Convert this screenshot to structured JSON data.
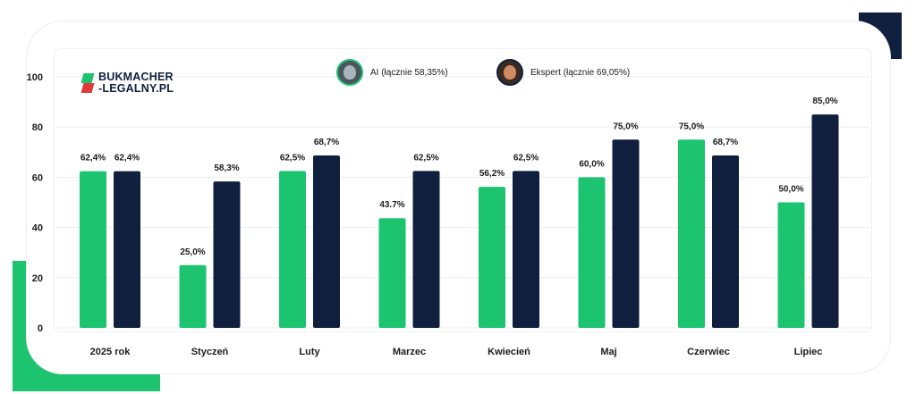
{
  "brand": {
    "logo_line1": "BUKMACHER",
    "logo_line2": "-LEGALNY.PL"
  },
  "legend": [
    {
      "name": "AI",
      "label": "AI (łącznie 58,35%)",
      "avatar": "robot-face-icon",
      "color": "#1cc46f"
    },
    {
      "name": "Ekspert",
      "label": "Ekspert (łącznie 69,05%)",
      "avatar": "expert-portrait-icon",
      "color": "#0f1f3d"
    }
  ],
  "colors": {
    "ai": "#1cc46f",
    "expert": "#0f1f3d",
    "grid": "#eceef1",
    "text": "#1b1b1b"
  },
  "chart_data": {
    "type": "bar",
    "categories": [
      "2025 rok",
      "Styczeń",
      "Luty",
      "Marzec",
      "Kwiecień",
      "Maj",
      "Czerwiec",
      "Lipiec"
    ],
    "series": [
      {
        "name": "AI",
        "values": [
          62.4,
          25.0,
          62.5,
          43.7,
          56.2,
          60.0,
          75.0,
          50.0
        ],
        "labels": [
          "62,4%",
          "25,0%",
          "62,5%",
          "43.7%",
          "56,2%",
          "60,0%",
          "75,0%",
          "50,0%"
        ]
      },
      {
        "name": "Ekspert",
        "values": [
          62.4,
          58.3,
          68.7,
          62.5,
          62.5,
          75.0,
          68.7,
          85.0
        ],
        "labels": [
          "62,4%",
          "58,3%",
          "68,7%",
          "62,5%",
          "62,5%",
          "75,0%",
          "68,7%",
          "85,0%"
        ]
      }
    ],
    "yticks": [
      0,
      20,
      40,
      60,
      80,
      100
    ],
    "ylim": [
      0,
      100
    ],
    "grid": true,
    "legend_position": "top"
  }
}
